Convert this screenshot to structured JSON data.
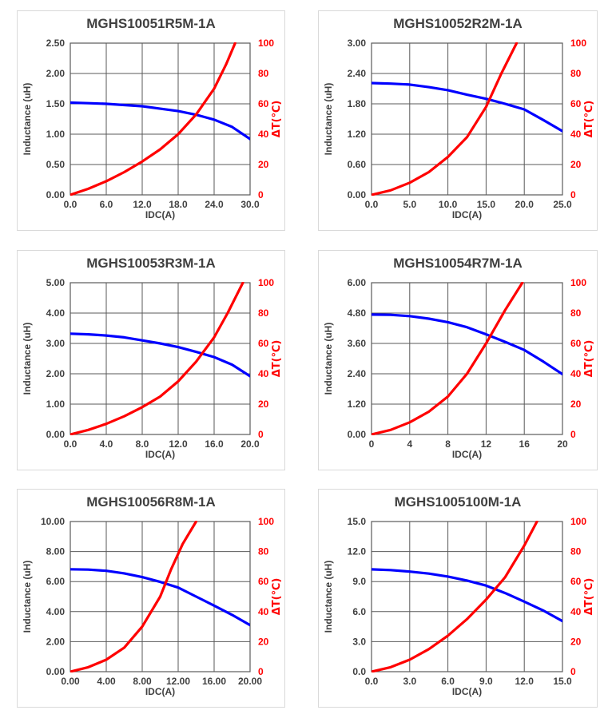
{
  "colors": {
    "inductance": "#0000ff",
    "temperature": "#ff0000",
    "grid": "#595959",
    "text": "#404040"
  },
  "chart_data": [
    {
      "type": "line",
      "title": "MGHS10051R5M-1A",
      "xlabel": "IDC(A)",
      "ylabel": "Inductance (uH)",
      "y2label": "ΔT(℃)",
      "xlim": [
        0,
        30
      ],
      "ylim": [
        0,
        2.5
      ],
      "y2lim": [
        0,
        100
      ],
      "xticks": [
        "0.0",
        "6.0",
        "12.0",
        "18.0",
        "24.0",
        "30.0"
      ],
      "yticks": [
        "0.00",
        "0.50",
        "1.00",
        "1.50",
        "2.00",
        "2.50"
      ],
      "y2ticks": [
        "0",
        "20",
        "40",
        "60",
        "80",
        "100"
      ],
      "grid": true,
      "series": [
        {
          "axis": "left",
          "color": "#0000ff",
          "x": [
            0,
            3,
            6,
            9,
            12,
            15,
            18,
            21,
            24,
            27,
            30
          ],
          "y": [
            1.52,
            1.51,
            1.5,
            1.48,
            1.46,
            1.42,
            1.38,
            1.32,
            1.24,
            1.12,
            0.92
          ]
        },
        {
          "axis": "right",
          "color": "#ff0000",
          "x": [
            0,
            3,
            6,
            9,
            12,
            15,
            18,
            21,
            24,
            26,
            27.5
          ],
          "y": [
            0,
            4,
            9,
            15,
            22,
            30,
            40,
            53,
            70,
            86,
            100
          ]
        }
      ]
    },
    {
      "type": "line",
      "title": "MGHS10052R2M-1A",
      "xlabel": "IDC(A)",
      "ylabel": "Inductance (uH)",
      "y2label": "ΔT(℃)",
      "xlim": [
        0,
        25
      ],
      "ylim": [
        0,
        3
      ],
      "y2lim": [
        0,
        100
      ],
      "xticks": [
        "0.0",
        "5.0",
        "10.0",
        "15.0",
        "20.0",
        "25.0"
      ],
      "yticks": [
        "0.00",
        "0.60",
        "1.20",
        "1.80",
        "2.40",
        "3.00"
      ],
      "y2ticks": [
        "0",
        "20",
        "40",
        "60",
        "80",
        "100"
      ],
      "grid": true,
      "series": [
        {
          "axis": "left",
          "color": "#0000ff",
          "x": [
            0,
            2.5,
            5,
            7.5,
            10,
            12.5,
            15,
            17.5,
            20,
            22.5,
            25
          ],
          "y": [
            2.21,
            2.2,
            2.18,
            2.13,
            2.07,
            1.98,
            1.9,
            1.8,
            1.69,
            1.48,
            1.26
          ]
        },
        {
          "axis": "right",
          "color": "#ff0000",
          "x": [
            0,
            2.5,
            5,
            7.5,
            10,
            12.5,
            15,
            17,
            19
          ],
          "y": [
            0,
            3,
            8,
            15,
            25,
            38,
            58,
            80,
            100
          ]
        }
      ]
    },
    {
      "type": "line",
      "title": "MGHS10053R3M-1A",
      "xlabel": "IDC(A)",
      "ylabel": "Inductance (uH)",
      "y2label": "ΔT(℃)",
      "xlim": [
        0,
        20
      ],
      "ylim": [
        0,
        5
      ],
      "y2lim": [
        0,
        100
      ],
      "xticks": [
        "0.0",
        "4.0",
        "8.0",
        "12.0",
        "16.0",
        "20.0"
      ],
      "yticks": [
        "0.00",
        "1.00",
        "2.00",
        "3.00",
        "4.00",
        "5.00"
      ],
      "y2ticks": [
        "0",
        "20",
        "40",
        "60",
        "80",
        "100"
      ],
      "grid": true,
      "series": [
        {
          "axis": "left",
          "color": "#0000ff",
          "x": [
            0,
            2,
            4,
            6,
            8,
            10,
            12,
            14,
            16,
            18,
            20
          ],
          "y": [
            3.32,
            3.3,
            3.26,
            3.2,
            3.1,
            3.0,
            2.88,
            2.72,
            2.55,
            2.3,
            1.92
          ]
        },
        {
          "axis": "right",
          "color": "#ff0000",
          "x": [
            0,
            2,
            4,
            6,
            8,
            10,
            12,
            14,
            16,
            17.5,
            19.2
          ],
          "y": [
            0,
            3,
            7,
            12,
            18,
            25,
            35,
            48,
            64,
            80,
            100
          ]
        }
      ]
    },
    {
      "type": "line",
      "title": "MGHS10054R7M-1A",
      "xlabel": "IDC(A)",
      "ylabel": "Inductance (uH)",
      "y2label": "ΔT(℃)",
      "xlim": [
        0,
        20
      ],
      "ylim": [
        0,
        6
      ],
      "y2lim": [
        0,
        100
      ],
      "xticks": [
        "0",
        "4",
        "8",
        "12",
        "16",
        "20"
      ],
      "yticks": [
        "0.00",
        "1.20",
        "2.40",
        "3.60",
        "4.80",
        "6.00"
      ],
      "y2ticks": [
        "0",
        "20",
        "40",
        "60",
        "80",
        "100"
      ],
      "grid": true,
      "series": [
        {
          "axis": "left",
          "color": "#0000ff",
          "x": [
            0,
            2,
            4,
            6,
            8,
            10,
            12,
            14,
            16,
            18,
            20
          ],
          "y": [
            4.74,
            4.73,
            4.68,
            4.58,
            4.44,
            4.24,
            3.96,
            3.66,
            3.34,
            2.88,
            2.38
          ]
        },
        {
          "axis": "right",
          "color": "#ff0000",
          "x": [
            0,
            2,
            4,
            6,
            8,
            10,
            12,
            14,
            15.8
          ],
          "y": [
            0,
            3,
            8,
            15,
            25,
            40,
            60,
            82,
            100
          ]
        }
      ]
    },
    {
      "type": "line",
      "title": "MGHS10056R8M-1A",
      "xlabel": "IDC(A)",
      "ylabel": "Inductance (uH)",
      "y2label": "ΔT(℃)",
      "xlim": [
        0,
        20
      ],
      "ylim": [
        0,
        10
      ],
      "y2lim": [
        0,
        100
      ],
      "xticks": [
        "0.00",
        "4.00",
        "8.00",
        "12.00",
        "16.00",
        "20.00"
      ],
      "yticks": [
        "0.00",
        "2.00",
        "4.00",
        "6.00",
        "8.00",
        "10.00"
      ],
      "y2ticks": [
        "0",
        "20",
        "40",
        "60",
        "80",
        "100"
      ],
      "grid": true,
      "series": [
        {
          "axis": "left",
          "color": "#0000ff",
          "x": [
            0,
            2,
            4,
            6,
            8,
            10,
            12,
            14,
            16,
            18,
            20
          ],
          "y": [
            6.82,
            6.8,
            6.72,
            6.55,
            6.3,
            5.98,
            5.6,
            5.0,
            4.4,
            3.78,
            3.1
          ]
        },
        {
          "axis": "right",
          "color": "#ff0000",
          "x": [
            0,
            2,
            4,
            6,
            8,
            10,
            11.2,
            12.5,
            14
          ],
          "y": [
            0,
            3,
            8,
            16,
            30,
            50,
            68,
            85,
            100
          ]
        }
      ]
    },
    {
      "type": "line",
      "title": "MGHS1005100M-1A",
      "xlabel": "IDC(A)",
      "ylabel": "Inductance (uH)",
      "y2label": "ΔT(℃)",
      "xlim": [
        0,
        15
      ],
      "ylim": [
        0,
        15
      ],
      "y2lim": [
        0,
        100
      ],
      "xticks": [
        "0.0",
        "3.0",
        "6.0",
        "9.0",
        "12.0",
        "15.0"
      ],
      "yticks": [
        "0.0",
        "3.0",
        "6.0",
        "9.0",
        "12.0",
        "15.0"
      ],
      "y2ticks": [
        "0",
        "20",
        "40",
        "60",
        "80",
        "100"
      ],
      "grid": true,
      "series": [
        {
          "axis": "left",
          "color": "#0000ff",
          "x": [
            0,
            1.5,
            3,
            4.5,
            6,
            7.5,
            9,
            10.5,
            12,
            13.5,
            15
          ],
          "y": [
            10.22,
            10.15,
            10.0,
            9.8,
            9.5,
            9.1,
            8.6,
            7.85,
            7.0,
            6.1,
            5.05
          ]
        },
        {
          "axis": "right",
          "color": "#ff0000",
          "x": [
            0,
            1.5,
            3,
            4.5,
            6,
            7.5,
            9,
            10.5,
            12,
            13
          ],
          "y": [
            0,
            3,
            8,
            15,
            24,
            35,
            48,
            63,
            84,
            100
          ]
        }
      ]
    }
  ]
}
